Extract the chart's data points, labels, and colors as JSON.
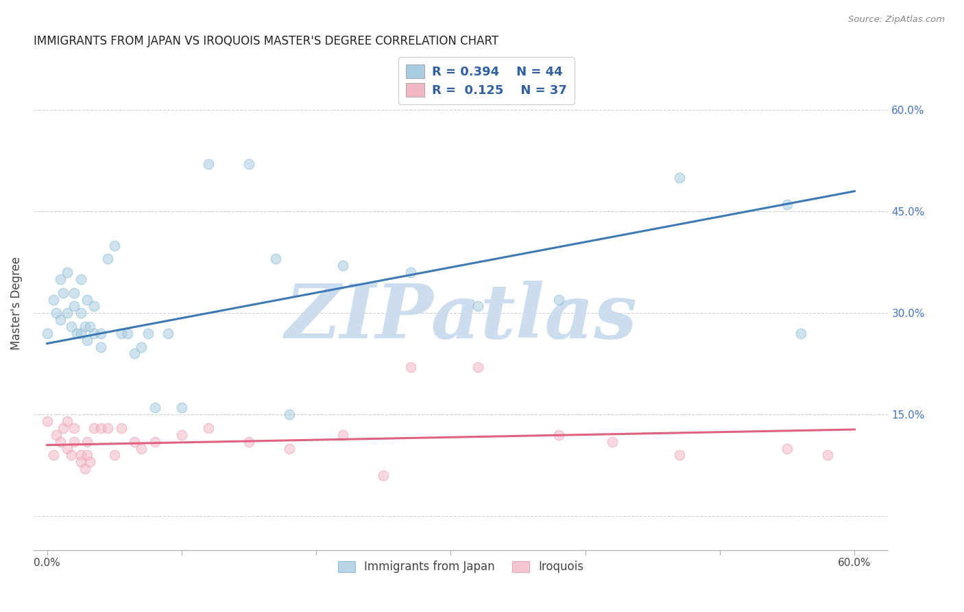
{
  "title": "IMMIGRANTS FROM JAPAN VS IROQUOIS MASTER'S DEGREE CORRELATION CHART",
  "source": "Source: ZipAtlas.com",
  "ylabel": "Master's Degree",
  "legend_blue_r": "R = 0.394",
  "legend_blue_n": "N = 44",
  "legend_pink_r": "R = 0.125",
  "legend_pink_n": "N = 37",
  "legend_blue_label": "Immigrants from Japan",
  "legend_pink_label": "Iroquois",
  "x_ticks": [
    0.0,
    0.1,
    0.2,
    0.3,
    0.4,
    0.5,
    0.6
  ],
  "y_ticks": [
    0.0,
    0.15,
    0.3,
    0.45,
    0.6
  ],
  "right_y_tick_labels": [
    "",
    "15.0%",
    "30.0%",
    "45.0%",
    "60.0%"
  ],
  "xlim": [
    -0.01,
    0.625
  ],
  "ylim": [
    -0.05,
    0.68
  ],
  "blue_color": "#a8cce0",
  "blue_edge_color": "#7fb3d3",
  "blue_line_color": "#3d7ab5",
  "pink_color": "#f2b8c6",
  "pink_edge_color": "#e896ad",
  "pink_line_color": "#e06080",
  "watermark_text": "ZIPatlas",
  "watermark_color": "#ccddf0",
  "grid_color": "#d0d0d0",
  "background_color": "#ffffff",
  "blue_dots_x": [
    0.0,
    0.005,
    0.007,
    0.01,
    0.01,
    0.012,
    0.015,
    0.015,
    0.018,
    0.02,
    0.02,
    0.022,
    0.025,
    0.025,
    0.025,
    0.028,
    0.03,
    0.03,
    0.032,
    0.035,
    0.035,
    0.04,
    0.04,
    0.045,
    0.05,
    0.055,
    0.06,
    0.065,
    0.07,
    0.075,
    0.08,
    0.09,
    0.1,
    0.12,
    0.15,
    0.17,
    0.18,
    0.22,
    0.27,
    0.32,
    0.38,
    0.47,
    0.55,
    0.56
  ],
  "blue_dots_y": [
    0.27,
    0.32,
    0.3,
    0.35,
    0.29,
    0.33,
    0.36,
    0.3,
    0.28,
    0.33,
    0.31,
    0.27,
    0.3,
    0.35,
    0.27,
    0.28,
    0.32,
    0.26,
    0.28,
    0.31,
    0.27,
    0.27,
    0.25,
    0.38,
    0.4,
    0.27,
    0.27,
    0.24,
    0.25,
    0.27,
    0.16,
    0.27,
    0.16,
    0.52,
    0.52,
    0.38,
    0.15,
    0.37,
    0.36,
    0.31,
    0.32,
    0.5,
    0.46,
    0.27
  ],
  "pink_dots_x": [
    0.0,
    0.005,
    0.007,
    0.01,
    0.012,
    0.015,
    0.015,
    0.018,
    0.02,
    0.02,
    0.025,
    0.025,
    0.028,
    0.03,
    0.03,
    0.032,
    0.035,
    0.04,
    0.045,
    0.05,
    0.055,
    0.065,
    0.07,
    0.08,
    0.1,
    0.12,
    0.15,
    0.18,
    0.22,
    0.25,
    0.27,
    0.32,
    0.38,
    0.42,
    0.47,
    0.55,
    0.58
  ],
  "pink_dots_y": [
    0.14,
    0.09,
    0.12,
    0.11,
    0.13,
    0.1,
    0.14,
    0.09,
    0.11,
    0.13,
    0.09,
    0.08,
    0.07,
    0.11,
    0.09,
    0.08,
    0.13,
    0.13,
    0.13,
    0.09,
    0.13,
    0.11,
    0.1,
    0.11,
    0.12,
    0.13,
    0.11,
    0.1,
    0.12,
    0.06,
    0.22,
    0.22,
    0.12,
    0.11,
    0.09,
    0.1,
    0.09
  ],
  "blue_trend_x": [
    0.0,
    0.6
  ],
  "blue_trend_y": [
    0.255,
    0.48
  ],
  "pink_trend_x": [
    0.0,
    0.6
  ],
  "pink_trend_y": [
    0.105,
    0.128
  ],
  "dot_size": 110,
  "dot_alpha": 0.55,
  "right_y_color": "#4472c4",
  "legend_text_color": "#3060a0",
  "legend_r_color": "#3060a0",
  "legend_n_color": "#111111"
}
